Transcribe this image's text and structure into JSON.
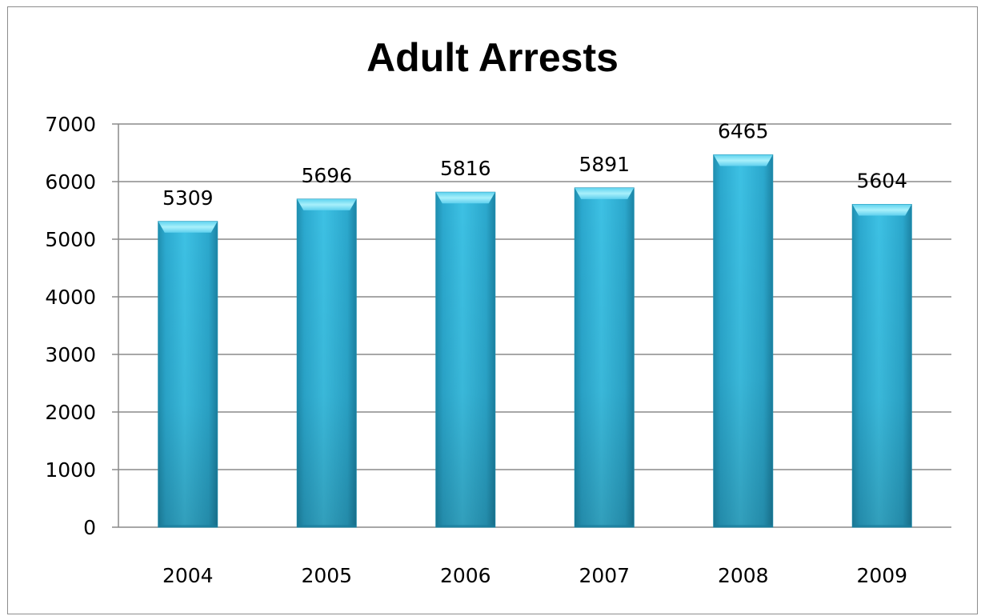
{
  "chart_data": {
    "type": "bar",
    "title": "Adult Arrests",
    "xlabel": "",
    "ylabel": "",
    "categories": [
      "2004",
      "2005",
      "2006",
      "2007",
      "2008",
      "2009"
    ],
    "values": [
      5309,
      5696,
      5816,
      5891,
      6465,
      5604
    ],
    "data_labels": [
      "5309",
      "5696",
      "5816",
      "5891",
      "6465",
      "5604"
    ],
    "ylim": [
      0,
      7000
    ],
    "yticks": [
      0,
      1000,
      2000,
      3000,
      4000,
      5000,
      6000,
      7000
    ],
    "ytick_labels": [
      "0",
      "1000",
      "2000",
      "3000",
      "4000",
      "5000",
      "6000",
      "7000"
    ],
    "grid": true,
    "legend": "none",
    "bar_color": "#3bbde0",
    "bar_edge_color": "#1f8fb0",
    "bar_top_color": "#8ee6f7"
  }
}
